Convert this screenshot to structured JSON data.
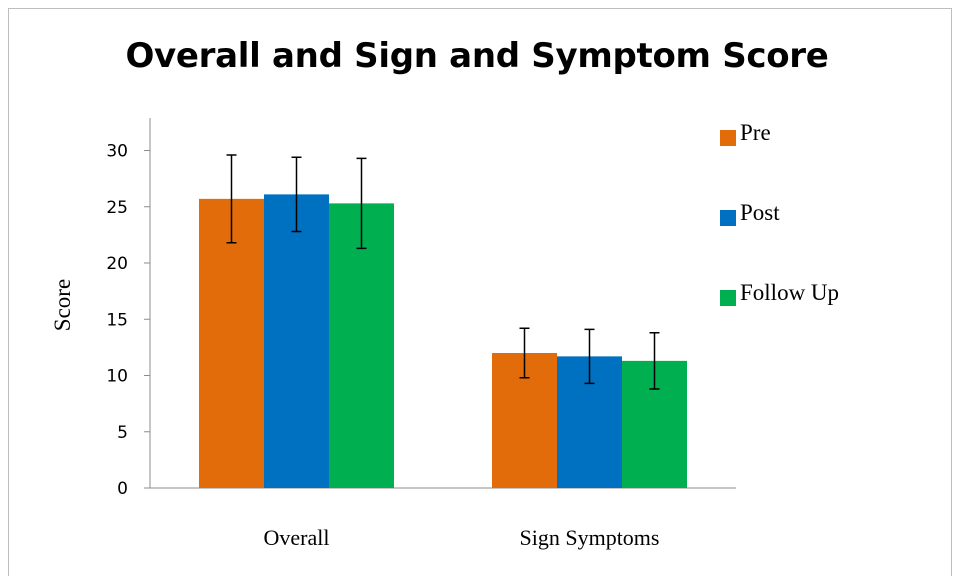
{
  "chart_data": {
    "type": "bar",
    "title": "Overall and Sign and Symptom Score",
    "xlabel": "",
    "ylabel": "Score",
    "categories": [
      "Overall",
      "Sign Symptoms"
    ],
    "ylim": [
      0,
      32
    ],
    "yticks": [
      0,
      5,
      10,
      15,
      20,
      25,
      30
    ],
    "grid": false,
    "legend_position": "right",
    "error_bars": true,
    "series": [
      {
        "name": "Pre",
        "color": "#E36C0A",
        "values": [
          25.7,
          12.0
        ],
        "errors": [
          3.9,
          2.2
        ]
      },
      {
        "name": "Post",
        "color": "#0070C0",
        "values": [
          26.1,
          11.7
        ],
        "errors": [
          3.3,
          2.4
        ]
      },
      {
        "name": "Follow Up",
        "color": "#00B050",
        "values": [
          25.3,
          11.3
        ],
        "errors": [
          4.0,
          2.5
        ]
      }
    ]
  }
}
